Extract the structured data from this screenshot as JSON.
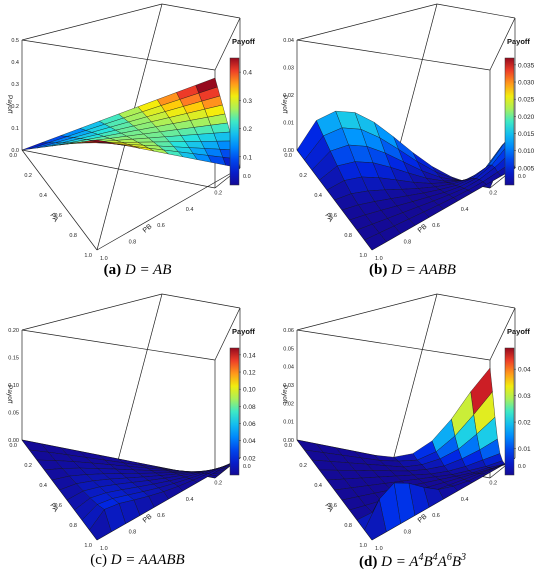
{
  "chart_data": [
    {
      "type": "surface",
      "panel_letter": "(a)",
      "caption_rest": "D = AB",
      "legend_title": "Payoff",
      "zlabel": "Payoff",
      "xlabel": "PA",
      "ylabel": "PB",
      "zlim": [
        0,
        0.5
      ],
      "z_ticks": [
        "0.5",
        "0.4",
        "0.3",
        "0.2",
        "0.1",
        "0.0"
      ],
      "pa_ticks": [
        "0.0",
        "0.2",
        "0.4",
        "0.6",
        "0.8",
        "1.0"
      ],
      "pb_ticks": [
        "1.0",
        "0.8",
        "0.6",
        "0.4",
        "0.2",
        "0.0"
      ],
      "colorbar_range": [
        0,
        0.45
      ],
      "colorbar_ticks": [
        "0.4",
        "0.3",
        "0.2",
        "0.1"
      ],
      "grid_pa": [
        0,
        0.1,
        0.2,
        0.3,
        0.4,
        0.5,
        0.6,
        0.7,
        0.8,
        0.9,
        1
      ],
      "grid_pb": [
        0,
        0.1,
        0.2,
        0.3,
        0.4,
        0.5,
        0.6,
        0.7,
        0.8,
        0.9,
        1
      ],
      "payoff_grid": [
        [
          0.5,
          0.45,
          0.4,
          0.35,
          0.3,
          0.25,
          0.2,
          0.15,
          0.1,
          0.05,
          0
        ],
        [
          0.45,
          0.41,
          0.37,
          0.33,
          0.29,
          0.25,
          0.21,
          0.17,
          0.13,
          0.09,
          0.05
        ],
        [
          0.4,
          0.37,
          0.34,
          0.31,
          0.28,
          0.25,
          0.22,
          0.19,
          0.16,
          0.13,
          0.1
        ],
        [
          0.35,
          0.33,
          0.31,
          0.29,
          0.27,
          0.25,
          0.23,
          0.21,
          0.19,
          0.17,
          0.15
        ],
        [
          0.3,
          0.29,
          0.28,
          0.27,
          0.26,
          0.25,
          0.24,
          0.23,
          0.22,
          0.21,
          0.2
        ],
        [
          0.25,
          0.25,
          0.25,
          0.25,
          0.25,
          0.25,
          0.25,
          0.25,
          0.25,
          0.25,
          0.25
        ],
        [
          0.2,
          0.21,
          0.22,
          0.23,
          0.24,
          0.25,
          0.26,
          0.27,
          0.28,
          0.29,
          0.3
        ],
        [
          0.15,
          0.17,
          0.19,
          0.21,
          0.23,
          0.25,
          0.27,
          0.29,
          0.31,
          0.33,
          0.35
        ],
        [
          0.1,
          0.13,
          0.16,
          0.19,
          0.22,
          0.25,
          0.28,
          0.31,
          0.34,
          0.37,
          0.4
        ],
        [
          0.05,
          0.09,
          0.13,
          0.17,
          0.21,
          0.25,
          0.29,
          0.33,
          0.37,
          0.41,
          0.45
        ],
        [
          0,
          0.05,
          0.1,
          0.15,
          0.2,
          0.25,
          0.3,
          0.35,
          0.4,
          0.45,
          0.5
        ]
      ]
    },
    {
      "type": "surface",
      "panel_letter": "(b)",
      "caption_rest": "D = AABB",
      "legend_title": "Payoff",
      "zlabel": "Payoff",
      "xlabel": "PA",
      "ylabel": "PB",
      "zlim": [
        0,
        0.04
      ],
      "z_ticks": [
        "0.04",
        "0.03",
        "0.02",
        "0.01",
        "0.00"
      ],
      "pa_ticks": [
        "0.0",
        "0.2",
        "0.4",
        "0.6",
        "0.8",
        "1.0"
      ],
      "pb_ticks": [
        "1.0",
        "0.8",
        "0.6",
        "0.4",
        "0.2",
        "0.0"
      ],
      "colorbar_range": [
        0,
        0.037
      ],
      "colorbar_ticks": [
        "0.035",
        "0.030",
        "0.025",
        "0.020",
        "0.015",
        "0.010",
        "0.005"
      ],
      "grid_pa": [
        0,
        0.1,
        0.2,
        0.3,
        0.4,
        0.5,
        0.6,
        0.7,
        0.8,
        0.9,
        1
      ],
      "grid_pb": [
        0,
        0.1,
        0.2,
        0.3,
        0.4,
        0.5,
        0.6,
        0.7,
        0.8,
        0.9,
        1
      ],
      "payoff_grid": [
        [
          0,
          0.0002,
          0.0013,
          0.0037,
          0.0074,
          0.0117,
          0.0156,
          0.0178,
          0.0169,
          0.0121,
          0
        ],
        [
          0.0014,
          0.0004,
          0.0006,
          0.0022,
          0.0051,
          0.0086,
          0.0119,
          0.014,
          0.0136,
          0.0097,
          0
        ],
        [
          0.0041,
          0.0012,
          0.0002,
          0.0009,
          0.0028,
          0.0055,
          0.0082,
          0.0101,
          0.0101,
          0.0074,
          0
        ],
        [
          0.0072,
          0.0023,
          0.0004,
          0.0001,
          0.0011,
          0.0029,
          0.0049,
          0.0065,
          0.0068,
          0.0052,
          0
        ],
        [
          0.0102,
          0.0036,
          0.0008,
          0.0001,
          0.0002,
          0.001,
          0.0022,
          0.0034,
          0.004,
          0.0031,
          0
        ],
        [
          0.0121,
          0.0046,
          0.0012,
          0.0002,
          0,
          0.0002,
          0.0007,
          0.0013,
          0.0017,
          0.0015,
          0
        ],
        [
          0.0123,
          0.0052,
          0.0016,
          0.0003,
          0,
          0,
          0.0002,
          0.0004,
          0.0006,
          0.0006,
          0
        ],
        [
          0.0104,
          0.0049,
          0.0017,
          0.0004,
          0,
          0,
          0,
          0.0001,
          0.0002,
          0.0002,
          0
        ],
        [
          0.0068,
          0.0037,
          0.0015,
          0.0004,
          0.0001,
          0,
          0,
          0,
          0,
          0,
          0
        ],
        [
          0.0029,
          0.0018,
          0.0008,
          0.0003,
          0.0001,
          0,
          0,
          0,
          0,
          0,
          0
        ],
        [
          0,
          0,
          0,
          0,
          0,
          0,
          0,
          0,
          0,
          0,
          0
        ]
      ]
    },
    {
      "type": "surface",
      "panel_letter": "(c)",
      "caption_rest": "D = AAABB",
      "legend_title": "Payoff",
      "zlabel": "Payoff",
      "xlabel": "PA",
      "ylabel": "PB",
      "zlim": [
        0,
        0.2
      ],
      "z_ticks": [
        "0.20",
        "0.15",
        "0.10",
        "0.05",
        "0.00"
      ],
      "pa_ticks": [
        "0.0",
        "0.2",
        "0.4",
        "0.6",
        "0.8",
        "1.0"
      ],
      "pb_ticks": [
        "1.0",
        "0.8",
        "0.6",
        "0.4",
        "0.2",
        "0.0"
      ],
      "colorbar_range": [
        0,
        0.148
      ],
      "colorbar_ticks": [
        "0.14",
        "0.12",
        "0.10",
        "0.08",
        "0.06",
        "0.04",
        "0.02"
      ],
      "grid_pa": [
        0,
        0.1,
        0.2,
        0.3,
        0.4,
        0.5,
        0.6,
        0.7,
        0.8,
        0.9,
        1
      ],
      "grid_pb": [
        0,
        0.1,
        0.2,
        0.3,
        0.4,
        0.5,
        0.6,
        0.7,
        0.8,
        0.9,
        1
      ],
      "payoff_grid": [
        [
          0,
          0,
          0,
          0,
          0,
          0,
          0,
          0,
          0,
          0,
          0
        ],
        [
          0,
          0,
          0,
          0.0001,
          0.0002,
          0.0004,
          0.0006,
          0.0008,
          0.0009,
          0.0007,
          0
        ],
        [
          0,
          0,
          0.0001,
          0.0003,
          0.0007,
          0.0012,
          0.0017,
          0.0021,
          0.0022,
          0.0017,
          0
        ],
        [
          0.0001,
          0,
          0.0002,
          0.0005,
          0.0012,
          0.0021,
          0.0031,
          0.0039,
          0.0041,
          0.0033,
          0
        ],
        [
          0.0001,
          0.0001,
          0.0003,
          0.0008,
          0.0017,
          0.003,
          0.0045,
          0.0058,
          0.0063,
          0.0052,
          0
        ],
        [
          0.0002,
          0.0002,
          0.0004,
          0.001,
          0.0021,
          0.0038,
          0.0059,
          0.0078,
          0.0088,
          0.0074,
          0
        ],
        [
          0.0002,
          0.0002,
          0.0005,
          0.0012,
          0.0025,
          0.0046,
          0.0072,
          0.0098,
          0.0115,
          0.0101,
          0
        ],
        [
          0.0002,
          0.0002,
          0.0005,
          0.0013,
          0.0028,
          0.0052,
          0.0084,
          0.0118,
          0.0145,
          0.0134,
          0
        ],
        [
          0.0002,
          0.0002,
          0.0005,
          0.0014,
          0.003,
          0.0057,
          0.0095,
          0.0139,
          0.018,
          0.0177,
          0
        ],
        [
          0.0001,
          0.0002,
          0.0005,
          0.0014,
          0.0031,
          0.006,
          0.0105,
          0.0163,
          0.0227,
          0.0245,
          0
        ],
        [
          0,
          0,
          0,
          0,
          0,
          0,
          0,
          0,
          0,
          0,
          0
        ]
      ]
    },
    {
      "type": "surface",
      "panel_letter": "(d)",
      "caption_rest": "D = A4B4A6B3",
      "caption_exp": [
        {
          "base": "A",
          "exp": "4"
        },
        {
          "base": "B",
          "exp": "4"
        },
        {
          "base": "A",
          "exp": "6"
        },
        {
          "base": "B",
          "exp": "3"
        }
      ],
      "legend_title": "Payoff",
      "zlabel": "Payoff",
      "xlabel": "PA",
      "ylabel": "PB",
      "zlim": [
        0,
        0.06
      ],
      "z_ticks": [
        "0.06",
        "0.05",
        "0.04",
        "0.03",
        "0.02",
        "0.01",
        "0.00"
      ],
      "pa_ticks": [
        "0.0",
        "0.2",
        "0.4",
        "0.6",
        "0.8",
        "1.0"
      ],
      "pb_ticks": [
        "1.0",
        "0.8",
        "0.6",
        "0.4",
        "0.2",
        "0.0"
      ],
      "colorbar_range": [
        0,
        0.048
      ],
      "colorbar_ticks": [
        "0.04",
        "0.03",
        "0.02",
        "0.01"
      ],
      "grid_pa": [
        0,
        0.1,
        0.2,
        0.3,
        0.4,
        0.5,
        0.6,
        0.7,
        0.8,
        0.9,
        1
      ],
      "grid_pb": [
        0,
        0.1,
        0.2,
        0.3,
        0.4,
        0.5,
        0.6,
        0.7,
        0.8,
        0.9,
        1
      ],
      "payoff_grid": [
        [
          0.06,
          0.045,
          0.028,
          0.014,
          0.005,
          0.001,
          0,
          0,
          0,
          0,
          0
        ],
        [
          0.046,
          0.032,
          0.019,
          0.009,
          0.003,
          0.001,
          0,
          0,
          0,
          0,
          0
        ],
        [
          0.031,
          0.021,
          0.012,
          0.006,
          0.002,
          0,
          0,
          0,
          0,
          0,
          0
        ],
        [
          0.018,
          0.012,
          0.007,
          0.003,
          0.001,
          0,
          0,
          0,
          0,
          0,
          0
        ],
        [
          0.009,
          0.006,
          0.003,
          0.001,
          0,
          0,
          0,
          0,
          0,
          0,
          0
        ],
        [
          0.004,
          0.002,
          0.001,
          0,
          0,
          0,
          0,
          0,
          0,
          0,
          0
        ],
        [
          0.001,
          0.001,
          0,
          0,
          0,
          0,
          0,
          0,
          0,
          0,
          0
        ],
        [
          0,
          0,
          0,
          0,
          0,
          0,
          0,
          0,
          0,
          0,
          0
        ],
        [
          0,
          0,
          0,
          0,
          0,
          0,
          0,
          0,
          0.001,
          0.001,
          0
        ],
        [
          0,
          0,
          0,
          0,
          0.001,
          0.003,
          0.008,
          0.014,
          0.018,
          0.013,
          0
        ],
        [
          0,
          0,
          0,
          0,
          0,
          0,
          0,
          0,
          0,
          0,
          0
        ]
      ]
    }
  ]
}
